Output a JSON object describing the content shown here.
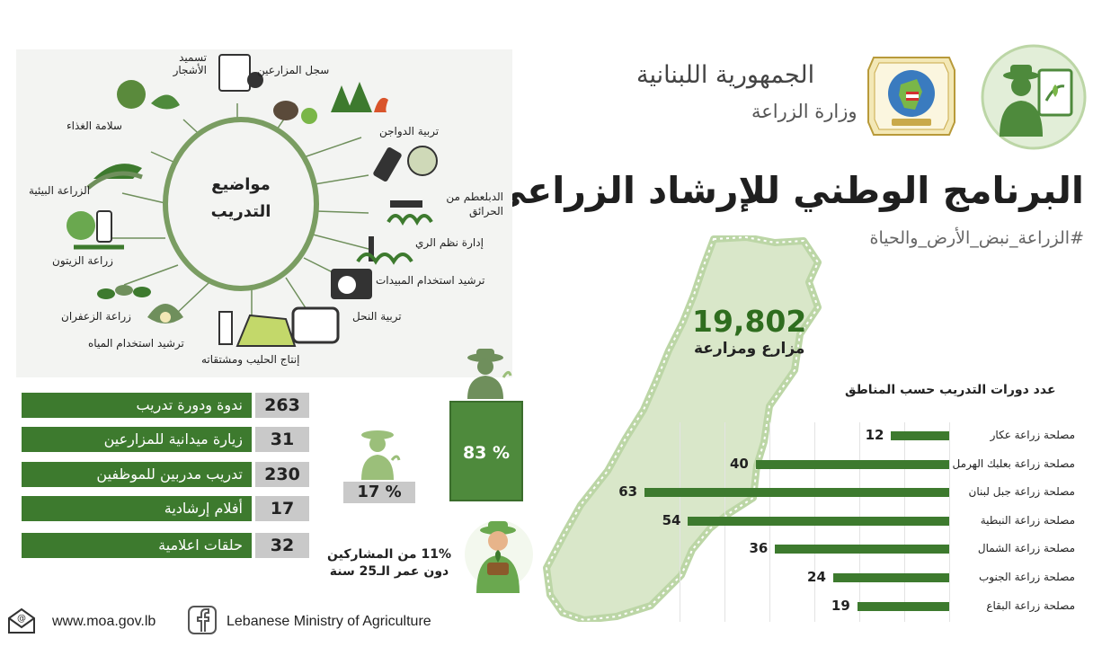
{
  "header": {
    "republic": "الجمهورية اللبنانية",
    "ministry": "وزارة الزراعة",
    "title": "البرنامج الوطني للإرشاد الزراعي",
    "hashtag": "#الزراعة_نبض_الأرض_والحياة"
  },
  "topics": {
    "center_line1": "مواضيع",
    "center_line2": "التدريب",
    "items": [
      "تسميد الأشجار",
      "سجل المزارعين",
      "تربية الدواجن",
      "الدبلعطم من الحرائق",
      "إدارة نظم الري",
      "ترشيد استخدام المبيدات",
      "تربية النحل",
      "إنتاج الحليب ومشتقاته",
      "ترشيد استخدام المياه",
      "زراعة الزعفران",
      "زراعة الزيتون",
      "الزراعة البيئية",
      "سلامة الغذاء"
    ]
  },
  "stats": [
    {
      "label": "ندوة ودورة تدريب",
      "value": "263"
    },
    {
      "label": "زيارة ميدانية للمزارعين",
      "value": "31"
    },
    {
      "label": "تدريب مدربين للموظفين",
      "value": "230"
    },
    {
      "label": "أفلام إرشادية",
      "value": "17"
    },
    {
      "label": "حلقات اعلامية",
      "value": "32"
    }
  ],
  "gender": {
    "male": "83 %",
    "female": "17 %",
    "male_pct": 83,
    "female_pct": 17
  },
  "youth": {
    "line1": "11% من المشاركين",
    "line2": "دون عمر الـ25 سنة"
  },
  "farmers": {
    "count": "19,802",
    "label": "مزارع ومزارعة"
  },
  "chart_data": {
    "type": "bar",
    "title": "عدد دورات التدريب حسب المناطق",
    "categories": [
      "مصلحة زراعة عكار",
      "مصلحة زراعة بعلبك الهرمل",
      "مصلحة زراعة جبل لبنان",
      "مصلحة زراعة النبطية",
      "مصلحة زراعة الشمال",
      "مصلحة زراعة الجنوب",
      "مصلحة زراعة البقاع"
    ],
    "values": [
      12,
      40,
      63,
      54,
      36,
      24,
      19
    ],
    "orientation": "horizontal",
    "bar_color": "#3d7a2e",
    "grid": true
  },
  "footer": {
    "website": "www.moa.gov.lb",
    "facebook": "Lebanese Ministry of Agriculture"
  },
  "colors": {
    "accent": "#3d7a2e",
    "light_green": "#c8dcb5",
    "gray": "#c9c9c9"
  }
}
